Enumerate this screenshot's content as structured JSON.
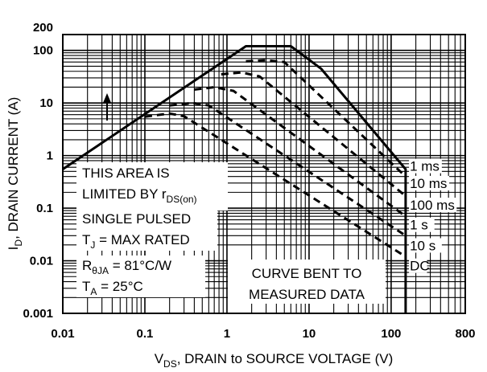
{
  "chart_data": {
    "type": "line",
    "title": "",
    "x_scale": "log",
    "y_scale": "log",
    "xlim": [
      0.01,
      800
    ],
    "ylim": [
      0.001,
      200
    ],
    "grid": true,
    "xlabel": {
      "main": "V",
      "sub": "DS",
      "rest": ", DRAIN to SOURCE VOLTAGE (V)"
    },
    "ylabel": {
      "main": "I",
      "sub": "D",
      "rest": ", DRAIN CURRENT (A)"
    },
    "x_ticks": [
      {
        "value": 0.01,
        "label": "0.01"
      },
      {
        "value": 0.1,
        "label": "0.1"
      },
      {
        "value": 1,
        "label": "1"
      },
      {
        "value": 10,
        "label": "10"
      },
      {
        "value": 100,
        "label": "100"
      },
      {
        "value": 800,
        "label": "800"
      }
    ],
    "y_ticks": [
      {
        "value": 200,
        "label": "200"
      },
      {
        "value": 100,
        "label": "100"
      },
      {
        "value": 10,
        "label": "10"
      },
      {
        "value": 1,
        "label": "1"
      },
      {
        "value": 0.1,
        "label": "0.1"
      },
      {
        "value": 0.01,
        "label": "0.01"
      },
      {
        "value": 0.001,
        "label": "0.001"
      }
    ],
    "series": [
      {
        "name": "1 ms",
        "style": "solid",
        "points": [
          [
            0.01,
            0.55
          ],
          [
            1.7,
            120
          ],
          [
            6,
            120
          ],
          [
            14,
            45
          ],
          [
            150,
            0.55
          ],
          [
            150,
            0.001
          ]
        ]
      },
      {
        "name": "10 ms",
        "style": "dashed",
        "points": [
          [
            1.7,
            62
          ],
          [
            3,
            65
          ],
          [
            5,
            60
          ],
          [
            150,
            0.4
          ]
        ]
      },
      {
        "name": "100 ms",
        "style": "dashed",
        "points": [
          [
            0.85,
            35
          ],
          [
            1.5,
            38
          ],
          [
            2.5,
            32
          ],
          [
            150,
            0.17
          ]
        ]
      },
      {
        "name": "1 s",
        "style": "dashed",
        "points": [
          [
            0.4,
            18
          ],
          [
            0.7,
            20
          ],
          [
            1.2,
            17
          ],
          [
            150,
            0.07
          ]
        ]
      },
      {
        "name": "10 s",
        "style": "dashed",
        "points": [
          [
            0.2,
            9
          ],
          [
            0.38,
            10
          ],
          [
            0.6,
            9
          ],
          [
            150,
            0.03
          ]
        ]
      },
      {
        "name": "DC",
        "style": "dashed",
        "points": [
          [
            0.1,
            5.5
          ],
          [
            0.2,
            6.3
          ],
          [
            0.3,
            5.6
          ],
          [
            150,
            0.012
          ]
        ]
      }
    ],
    "series_labels": [
      {
        "text": "1 ms",
        "x": 165,
        "y": 0.55
      },
      {
        "text": "10 ms",
        "x": 165,
        "y": 0.26
      },
      {
        "text": "100 ms",
        "x": 165,
        "y": 0.1
      },
      {
        "text": "1 s",
        "x": 165,
        "y": 0.042
      },
      {
        "text": "10 s",
        "x": 165,
        "y": 0.017
      },
      {
        "text": "DC",
        "x": 165,
        "y": 0.007
      }
    ],
    "annotations": {
      "area_line1": "THIS AREA IS",
      "area_line2_main": "LIMITED BY r",
      "area_line2_sub": "DS(on)",
      "single_pulsed": "SINGLE PULSED",
      "tj_main": "T",
      "tj_sub": "J",
      "tj_rest": " = MAX RATED",
      "rth_main": "R",
      "rth_sub": "θJA",
      "rth_rest": " = 81°C/W",
      "ta_main": "T",
      "ta_sub": "A",
      "ta_rest": " = 25°C",
      "curve_line1": "CURVE BENT TO",
      "curve_line2": "MEASURED DATA"
    }
  }
}
